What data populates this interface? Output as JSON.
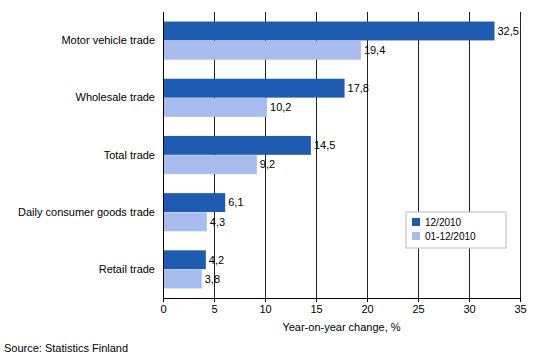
{
  "chart_data": {
    "type": "bar",
    "orientation": "horizontal",
    "categories": [
      "Motor vehicle trade",
      "Wholesale trade",
      "Total trade",
      "Daily consumer goods trade",
      "Retail trade"
    ],
    "series": [
      {
        "name": "12/2010",
        "color": "#1f5bb0",
        "values": [
          32.5,
          17.8,
          14.5,
          6.1,
          4.2
        ],
        "value_labels": [
          "32,5",
          "17,8",
          "14,5",
          "6,1",
          "4,2"
        ]
      },
      {
        "name": "01-12/2010",
        "color": "#a8bcee",
        "values": [
          19.4,
          10.2,
          9.2,
          4.3,
          3.8
        ],
        "value_labels": [
          "19,4",
          "10,2",
          "9,2",
          "4,3",
          "3,8"
        ]
      }
    ],
    "xlim": [
      0,
      35
    ],
    "xticks": [
      0,
      5,
      10,
      15,
      20,
      25,
      30,
      35
    ],
    "x_label": "Year-on-year change, %",
    "annotations": [
      "Source: Statistics Finland"
    ],
    "grid": true,
    "data_labels": true,
    "legend": "lower right"
  }
}
